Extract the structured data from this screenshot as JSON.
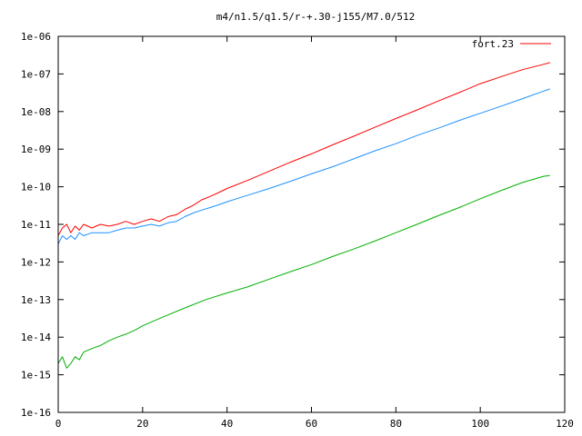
{
  "chart_data": {
    "type": "line",
    "title": "m4/n1.5/q1.5/r-+.30-j155/M7.0/512",
    "xlabel": "",
    "ylabel": "",
    "xlim": [
      0,
      120
    ],
    "ylim": [
      1e-16,
      1e-06
    ],
    "y_scale": "log",
    "grid": false,
    "legend_position": "top-right",
    "x_ticks": [
      "0",
      "20",
      "40",
      "60",
      "80",
      "100",
      "120"
    ],
    "y_ticks": [
      "1e-16",
      "1e-15",
      "1e-14",
      "1e-13",
      "1e-12",
      "1e-11",
      "1e-10",
      "1e-09",
      "1e-08",
      "1e-07",
      "1e-06"
    ],
    "series": [
      {
        "name": "fort.23",
        "color": "#ff0000",
        "x": [
          0,
          1,
          2,
          3,
          4,
          5,
          6,
          8,
          10,
          12,
          14,
          16,
          18,
          20,
          22,
          24,
          26,
          28,
          30,
          32,
          34,
          36,
          38,
          40,
          45,
          50,
          55,
          60,
          65,
          70,
          75,
          80,
          85,
          90,
          95,
          100,
          105,
          110,
          115,
          116.5
        ],
        "y": [
          5e-12,
          8e-12,
          1e-11,
          6e-12,
          9e-12,
          7e-12,
          1e-11,
          8e-12,
          1e-11,
          9e-12,
          1e-11,
          1.2e-11,
          1e-11,
          1.2e-11,
          1.4e-11,
          1.2e-11,
          1.6e-11,
          1.8e-11,
          2.5e-11,
          3.2e-11,
          4.5e-11,
          5.5e-11,
          7e-11,
          9e-11,
          1.5e-10,
          2.6e-10,
          4.5e-10,
          7.5e-10,
          1.3e-09,
          2.2e-09,
          3.8e-09,
          6.5e-09,
          1.1e-08,
          1.9e-08,
          3.2e-08,
          5.5e-08,
          8.5e-08,
          1.3e-07,
          1.8e-07,
          2e-07
        ]
      },
      {
        "name": "",
        "color": "#1e90ff",
        "x": [
          0,
          1,
          2,
          3,
          4,
          5,
          6,
          8,
          10,
          12,
          14,
          16,
          18,
          20,
          22,
          24,
          26,
          28,
          30,
          32,
          34,
          36,
          38,
          40,
          45,
          50,
          55,
          60,
          65,
          70,
          75,
          80,
          85,
          90,
          95,
          100,
          105,
          110,
          115,
          116.5
        ],
        "y": [
          3e-12,
          5e-12,
          4e-12,
          5e-12,
          4e-12,
          6e-12,
          5e-12,
          6e-12,
          6e-12,
          6e-12,
          7e-12,
          8e-12,
          8e-12,
          9e-12,
          1e-11,
          9e-12,
          1.1e-11,
          1.2e-11,
          1.6e-11,
          2e-11,
          2.4e-11,
          2.8e-11,
          3.3e-11,
          4e-11,
          6e-11,
          9e-11,
          1.4e-10,
          2.2e-10,
          3.4e-10,
          5.5e-10,
          9e-10,
          1.4e-09,
          2.3e-09,
          3.6e-09,
          5.8e-09,
          9e-09,
          1.4e-08,
          2.2e-08,
          3.5e-08,
          4e-08
        ]
      },
      {
        "name": "",
        "color": "#00b000",
        "x": [
          0,
          1,
          2,
          3,
          4,
          5,
          6,
          8,
          10,
          12,
          14,
          16,
          18,
          20,
          25,
          30,
          35,
          40,
          45,
          50,
          55,
          60,
          65,
          70,
          75,
          80,
          85,
          90,
          95,
          100,
          105,
          110,
          115,
          116.5
        ],
        "y": [
          2e-15,
          3e-15,
          1.5e-15,
          2e-15,
          3e-15,
          2.5e-15,
          4e-15,
          5e-15,
          6e-15,
          8e-15,
          1e-14,
          1.2e-14,
          1.5e-14,
          2e-14,
          3.5e-14,
          6e-14,
          1e-13,
          1.5e-13,
          2.2e-13,
          3.5e-13,
          5.5e-13,
          8.5e-13,
          1.4e-12,
          2.2e-12,
          3.6e-12,
          6e-12,
          1e-11,
          1.7e-11,
          2.8e-11,
          4.8e-11,
          8e-11,
          1.3e-10,
          1.9e-10,
          2e-10
        ]
      }
    ]
  }
}
